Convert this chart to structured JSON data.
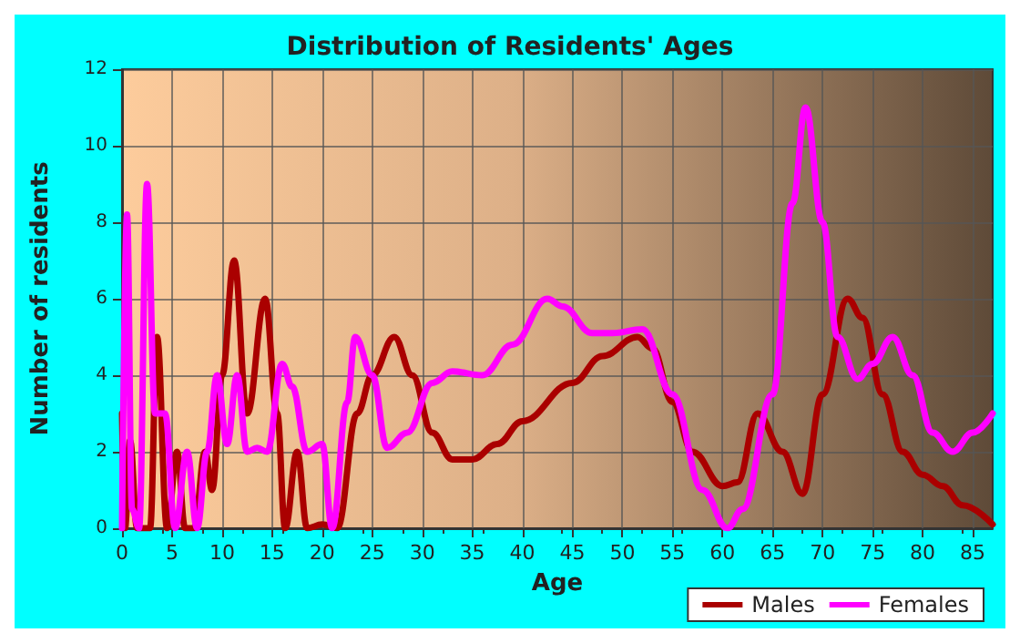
{
  "chart_data": {
    "type": "line",
    "title": "Distribution of Residents' Ages",
    "xlabel": "Age",
    "ylabel": "Number of residents",
    "xlim": [
      0,
      87
    ],
    "xticks": [
      0,
      5,
      10,
      15,
      20,
      25,
      30,
      35,
      40,
      45,
      50,
      55,
      60,
      65,
      70,
      75,
      80,
      85
    ],
    "ylim": [
      0,
      12
    ],
    "yticks": [
      0,
      2,
      4,
      6,
      8,
      10,
      12
    ],
    "grid": true,
    "legend": "bottom right",
    "marker": "none",
    "line_style": "solid",
    "series": [
      {
        "name": "Males",
        "color": "#aa0000",
        "x": [
          0,
          0.3,
          0.8,
          1.5,
          2.8,
          3.5,
          4.5,
          5.5,
          6.3,
          7.2,
          8.3,
          9,
          10,
          11.2,
          12.5,
          14.3,
          15.5,
          16.3,
          17.5,
          18.5,
          20,
          21.5,
          23.5,
          25,
          27.2,
          29,
          31,
          33,
          35,
          37.5,
          40,
          45,
          48,
          51.5,
          53,
          55,
          57,
          60,
          61.5,
          63.5,
          66,
          68,
          70,
          72.5,
          74,
          76,
          78,
          80,
          82,
          84,
          87
        ],
        "values": [
          3,
          0,
          2.3,
          0,
          0,
          5,
          0,
          2,
          0,
          0,
          2,
          1,
          4,
          7,
          3,
          6,
          3,
          0,
          2,
          0,
          0.1,
          0,
          3,
          4,
          5,
          4,
          2.5,
          1.8,
          1.8,
          2.2,
          2.8,
          3.8,
          4.5,
          5,
          4.7,
          3.3,
          2,
          1.1,
          1.2,
          3,
          2,
          0.9,
          3.5,
          6,
          5.5,
          3.5,
          2,
          1.4,
          1.1,
          0.6,
          0.1
        ]
      },
      {
        "name": "Females",
        "color": "#ff00ff",
        "x": [
          0,
          0.5,
          1,
          1.7,
          2.5,
          3.3,
          4.3,
          5.3,
          6.5,
          7.5,
          8.5,
          9.5,
          10.5,
          11.5,
          12.5,
          13.5,
          14.5,
          16,
          17,
          18.5,
          20,
          21,
          22.5,
          23.3,
          25,
          26.5,
          28.5,
          31,
          33,
          36,
          39,
          42.5,
          44,
          47,
          49,
          52,
          55,
          58,
          60.5,
          62,
          65,
          67,
          68.3,
          70,
          71.5,
          73.5,
          75,
          77,
          79,
          81,
          83,
          85,
          87
        ],
        "values": [
          0,
          8.2,
          0.5,
          0,
          9,
          3,
          3,
          0,
          2,
          0,
          2,
          4,
          2.2,
          4,
          2,
          2.1,
          2,
          4.3,
          3.7,
          2,
          2.2,
          0,
          3.3,
          5,
          4,
          2.1,
          2.5,
          3.8,
          4.1,
          4,
          4.8,
          6,
          5.8,
          5.1,
          5.1,
          5.2,
          3.5,
          1,
          0,
          0.5,
          3.5,
          8.5,
          11,
          8,
          5,
          3.9,
          4.3,
          5,
          4,
          2.5,
          2,
          2.5,
          3
        ]
      }
    ]
  }
}
